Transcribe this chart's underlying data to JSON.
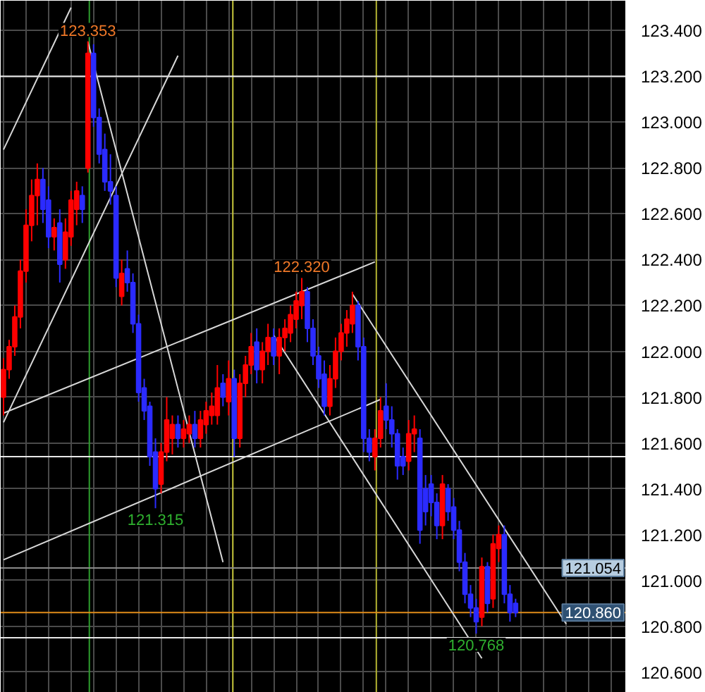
{
  "chart_data": {
    "type": "candlestick",
    "categories": [
      null,
      null,
      null,
      null,
      null,
      null,
      null,
      null,
      null,
      null,
      null,
      null,
      null,
      null,
      null,
      null,
      null,
      null,
      null,
      null,
      null,
      null,
      null,
      null,
      null,
      null,
      null,
      null,
      null,
      null,
      null,
      null,
      null,
      null,
      null,
      null,
      null,
      null,
      null,
      null,
      null,
      null,
      null,
      null,
      null,
      null,
      null,
      null,
      null,
      null,
      null,
      null,
      null,
      null,
      null,
      null,
      null,
      null,
      null,
      null,
      null,
      null,
      null,
      null,
      null,
      null,
      null,
      null,
      null,
      null,
      null,
      null,
      null,
      null,
      null,
      null,
      null,
      null,
      null,
      null,
      null,
      null,
      null,
      null,
      null,
      null,
      null,
      null,
      null,
      null,
      null,
      null,
      null,
      null,
      null,
      null,
      null,
      null,
      null,
      null,
      null,
      null,
      null,
      null,
      null,
      null,
      null,
      null,
      null,
      null,
      null
    ],
    "ohlc": [
      [
        121.8,
        121.97,
        121.72,
        121.92
      ],
      [
        121.92,
        122.05,
        121.88,
        122.02
      ],
      [
        122.02,
        122.2,
        121.98,
        122.15
      ],
      [
        122.15,
        122.4,
        122.1,
        122.35
      ],
      [
        122.35,
        122.62,
        122.3,
        122.55
      ],
      [
        122.55,
        122.75,
        122.48,
        122.68
      ],
      [
        122.68,
        122.82,
        122.55,
        122.75
      ],
      [
        122.75,
        122.8,
        122.56,
        122.62
      ],
      [
        122.66,
        122.72,
        122.45,
        122.5
      ],
      [
        122.5,
        122.58,
        122.44,
        122.54
      ],
      [
        122.56,
        122.62,
        122.3,
        122.38
      ],
      [
        122.4,
        122.58,
        122.36,
        122.52
      ],
      [
        122.5,
        122.7,
        122.46,
        122.66
      ],
      [
        122.62,
        122.74,
        122.55,
        122.7
      ],
      [
        122.68,
        122.72,
        122.56,
        122.62
      ],
      [
        122.8,
        123.353,
        122.78,
        123.3
      ],
      [
        123.3,
        123.34,
        122.98,
        123.02
      ],
      [
        123.02,
        123.06,
        122.82,
        122.86
      ],
      [
        122.88,
        122.95,
        122.7,
        122.74
      ],
      [
        122.74,
        122.86,
        122.64,
        122.7
      ],
      [
        122.68,
        122.72,
        122.28,
        122.32
      ],
      [
        122.24,
        122.4,
        122.2,
        122.34
      ],
      [
        122.36,
        122.44,
        122.26,
        122.3
      ],
      [
        122.3,
        122.34,
        122.08,
        122.12
      ],
      [
        122.12,
        122.16,
        121.78,
        121.82
      ],
      [
        121.84,
        121.88,
        121.7,
        121.74
      ],
      [
        121.76,
        121.78,
        121.5,
        121.54
      ],
      [
        121.56,
        121.62,
        121.315,
        121.4
      ],
      [
        121.42,
        121.6,
        121.38,
        121.56
      ],
      [
        121.56,
        121.8,
        121.52,
        121.7
      ],
      [
        121.62,
        121.72,
        121.55,
        121.68
      ],
      [
        121.68,
        121.72,
        121.58,
        121.62
      ],
      [
        121.62,
        121.7,
        121.58,
        121.66
      ],
      [
        121.64,
        121.72,
        121.6,
        121.68
      ],
      [
        121.68,
        121.74,
        121.58,
        121.62
      ],
      [
        121.62,
        121.74,
        121.58,
        121.7
      ],
      [
        121.68,
        121.78,
        121.64,
        121.74
      ],
      [
        121.72,
        121.82,
        121.68,
        121.76
      ],
      [
        121.72,
        121.94,
        121.68,
        121.84
      ],
      [
        121.86,
        121.9,
        121.76,
        121.8
      ],
      [
        121.78,
        121.96,
        121.72,
        121.88
      ],
      [
        121.88,
        121.92,
        121.54,
        121.62
      ],
      [
        121.62,
        121.9,
        121.58,
        121.86
      ],
      [
        121.86,
        121.98,
        121.8,
        121.94
      ],
      [
        121.94,
        122.08,
        121.9,
        122.02
      ],
      [
        122.04,
        122.1,
        121.86,
        121.92
      ],
      [
        121.92,
        122.04,
        121.86,
        122.0
      ],
      [
        122.0,
        122.12,
        121.94,
        122.06
      ],
      [
        122.06,
        122.1,
        121.94,
        121.98
      ],
      [
        121.98,
        122.1,
        121.9,
        122.06
      ],
      [
        122.06,
        122.14,
        122.0,
        122.1
      ],
      [
        122.08,
        122.2,
        122.04,
        122.16
      ],
      [
        122.14,
        122.26,
        122.1,
        122.22
      ],
      [
        122.2,
        122.32,
        122.14,
        122.26
      ],
      [
        122.26,
        122.28,
        122.04,
        122.1
      ],
      [
        122.1,
        122.14,
        121.94,
        121.98
      ],
      [
        121.98,
        122.02,
        121.84,
        121.88
      ],
      [
        121.9,
        121.96,
        121.72,
        121.76
      ],
      [
        121.76,
        121.94,
        121.72,
        121.88
      ],
      [
        121.88,
        122.06,
        121.84,
        122.0
      ],
      [
        122.0,
        122.12,
        121.96,
        122.08
      ],
      [
        122.08,
        122.18,
        122.02,
        122.14
      ],
      [
        122.12,
        122.26,
        122.08,
        122.2
      ],
      [
        122.2,
        122.22,
        121.96,
        122.02
      ],
      [
        122.02,
        122.06,
        121.56,
        121.62
      ],
      [
        121.62,
        121.66,
        121.52,
        121.56
      ],
      [
        121.54,
        121.66,
        121.48,
        121.62
      ],
      [
        121.62,
        121.8,
        121.58,
        121.74
      ],
      [
        121.76,
        121.86,
        121.66,
        121.7
      ],
      [
        121.7,
        121.76,
        121.58,
        121.64
      ],
      [
        121.64,
        121.66,
        121.44,
        121.5
      ],
      [
        121.54,
        121.58,
        121.46,
        121.5
      ],
      [
        121.52,
        121.7,
        121.48,
        121.64
      ],
      [
        121.64,
        121.72,
        121.56,
        121.66
      ],
      [
        121.62,
        121.66,
        121.16,
        121.22
      ],
      [
        121.4,
        121.46,
        121.24,
        121.3
      ],
      [
        121.42,
        121.46,
        121.28,
        121.34
      ],
      [
        121.34,
        121.38,
        121.18,
        121.24
      ],
      [
        121.24,
        121.46,
        121.18,
        121.42
      ],
      [
        121.4,
        121.42,
        121.26,
        121.3
      ],
      [
        121.32,
        121.36,
        121.18,
        121.22
      ],
      [
        121.22,
        121.26,
        121.04,
        121.08
      ],
      [
        121.08,
        121.12,
        120.9,
        120.94
      ],
      [
        120.94,
        120.98,
        120.84,
        120.88
      ],
      [
        120.88,
        120.92,
        120.768,
        120.82
      ],
      [
        120.84,
        121.1,
        120.8,
        121.06
      ],
      [
        121.06,
        121.08,
        120.86,
        120.9
      ],
      [
        120.92,
        121.2,
        120.88,
        121.16
      ],
      [
        121.14,
        121.24,
        121.08,
        121.2
      ],
      [
        121.2,
        121.24,
        120.9,
        120.94
      ],
      [
        120.94,
        120.98,
        120.82,
        120.86
      ],
      [
        120.9,
        120.92,
        120.84,
        120.86
      ],
      null,
      null,
      null,
      null,
      null,
      null,
      null,
      null,
      null,
      null,
      null,
      null,
      null,
      null,
      null,
      null,
      null,
      null,
      null
    ],
    "colors": [
      "#ff0000",
      "#ff0000",
      "#ff0000",
      "#ff0000",
      "#ff0000",
      "#ff0000",
      "#ff0000",
      "#2b2bff",
      "#2b2bff",
      "#ff0000",
      "#2b2bff",
      "#ff0000",
      "#ff0000",
      "#ff0000",
      "#2b2bff",
      "#ff0000",
      "#2b2bff",
      "#2b2bff",
      "#2b2bff",
      "#2b2bff",
      "#2b2bff",
      "#ff0000",
      "#2b2bff",
      "#2b2bff",
      "#2b2bff",
      "#2b2bff",
      "#2b2bff",
      "#2b2bff",
      "#ff0000",
      "#ff0000",
      "#ff0000",
      "#2b2bff",
      "#ff0000",
      "#ff0000",
      "#2b2bff",
      "#ff0000",
      "#ff0000",
      "#ff0000",
      "#ff0000",
      "#2b2bff",
      "#ff0000",
      "#2b2bff",
      "#ff0000",
      "#ff0000",
      "#ff0000",
      "#2b2bff",
      "#ff0000",
      "#ff0000",
      "#2b2bff",
      "#ff0000",
      "#ff0000",
      "#ff0000",
      "#ff0000",
      "#ff0000",
      "#2b2bff",
      "#2b2bff",
      "#2b2bff",
      "#2b2bff",
      "#ff0000",
      "#ff0000",
      "#ff0000",
      "#ff0000",
      "#ff0000",
      "#2b2bff",
      "#2b2bff",
      "#2b2bff",
      "#ff0000",
      "#ff0000",
      "#2b2bff",
      "#2b2bff",
      "#2b2bff",
      "#2b2bff",
      "#ff0000",
      "#ff0000",
      "#2b2bff",
      "#2b2bff",
      "#2b2bff",
      "#2b2bff",
      "#ff0000",
      "#2b2bff",
      "#2b2bff",
      "#2b2bff",
      "#2b2bff",
      "#2b2bff",
      "#2b2bff",
      "#ff0000",
      "#2b2bff",
      "#ff0000",
      "#ff0000",
      "#2b2bff",
      "#2b2bff",
      "#2b2bff",
      null,
      null,
      null,
      null,
      null,
      null,
      null,
      null,
      null,
      null,
      null,
      null,
      null,
      null,
      null,
      null,
      null,
      null,
      null
    ],
    "series": [
      {
        "type": "line",
        "color": "#d8d8d8",
        "values": [
          122.88,
          null,
          null,
          null,
          null,
          null,
          null,
          null,
          null,
          null,
          null,
          null,
          123.5,
          null,
          null,
          null,
          null,
          null,
          null,
          null,
          null,
          null,
          null,
          null,
          null,
          null,
          null,
          null,
          null,
          null,
          null,
          null,
          null,
          null,
          null,
          null,
          null,
          null,
          null,
          null,
          null,
          null,
          null,
          null,
          null,
          null,
          null,
          null,
          null,
          null,
          null,
          null,
          null,
          null,
          null,
          null,
          null,
          null,
          null,
          null,
          null,
          null,
          null,
          null,
          null,
          null,
          null,
          null,
          null,
          null,
          null,
          null,
          null,
          null,
          null,
          null,
          null,
          null,
          null,
          null,
          null,
          null,
          null,
          null,
          null,
          null,
          null,
          null,
          null,
          null,
          null,
          null,
          null,
          null,
          null,
          null,
          null,
          null,
          null,
          null,
          null,
          null,
          null,
          null,
          null,
          null,
          null,
          null,
          null,
          null,
          null
        ]
      },
      {
        "type": "line",
        "color": "#d8d8d8",
        "values": [
          121.69,
          null,
          null,
          null,
          null,
          null,
          null,
          null,
          null,
          null,
          null,
          null,
          null,
          null,
          null,
          null,
          null,
          null,
          null,
          null,
          null,
          null,
          null,
          null,
          null,
          null,
          null,
          null,
          null,
          null,
          null,
          123.29,
          null,
          null,
          null,
          null,
          null,
          null,
          null,
          null,
          null,
          null,
          null,
          null,
          null,
          null,
          null,
          null,
          null,
          null,
          null,
          null,
          null,
          null,
          null,
          null,
          null,
          null,
          null,
          null,
          null,
          null,
          null,
          null,
          null,
          null,
          null,
          null,
          null,
          null,
          null,
          null,
          null,
          null,
          null,
          null,
          null,
          null,
          null,
          null,
          null,
          null,
          null,
          null,
          null,
          null,
          null,
          null,
          null,
          null,
          null,
          null,
          null,
          null,
          null,
          null,
          null,
          null,
          null,
          null,
          null,
          null,
          null,
          null,
          null,
          null,
          null,
          null,
          null,
          null,
          null
        ]
      },
      {
        "type": "line",
        "color": "#d8d8d8",
        "values": [
          null,
          null,
          null,
          null,
          null,
          null,
          null,
          null,
          null,
          null,
          null,
          null,
          null,
          null,
          null,
          123.35,
          null,
          null,
          null,
          null,
          null,
          null,
          null,
          null,
          null,
          null,
          null,
          null,
          null,
          null,
          null,
          null,
          null,
          null,
          null,
          null,
          null,
          null,
          null,
          121.08,
          null,
          null,
          null,
          null,
          null,
          null,
          null,
          null,
          null,
          null,
          null,
          null,
          null,
          null,
          null,
          null,
          null,
          null,
          null,
          null,
          null,
          null,
          null,
          null,
          null,
          null,
          null,
          null,
          null,
          null,
          null,
          null,
          null,
          null,
          null,
          null,
          null,
          null,
          null,
          null,
          null,
          null,
          null,
          null,
          null,
          null,
          null,
          null,
          null,
          null,
          null,
          null,
          null,
          null,
          null,
          null,
          null,
          null,
          null,
          null,
          null,
          null,
          null,
          null,
          null,
          null,
          null,
          null,
          null,
          null,
          null
        ]
      },
      {
        "type": "line",
        "color": "#d8d8d8",
        "values": [
          121.09,
          null,
          null,
          null,
          null,
          null,
          null,
          null,
          null,
          null,
          null,
          null,
          null,
          null,
          null,
          null,
          null,
          null,
          null,
          null,
          null,
          null,
          null,
          null,
          null,
          null,
          null,
          null,
          null,
          null,
          null,
          null,
          null,
          null,
          null,
          null,
          null,
          null,
          null,
          null,
          null,
          null,
          null,
          null,
          null,
          null,
          null,
          null,
          null,
          null,
          null,
          null,
          null,
          null,
          null,
          null,
          null,
          null,
          null,
          null,
          null,
          null,
          null,
          null,
          null,
          null,
          null,
          121.79,
          null,
          null,
          null,
          null,
          null,
          null,
          null,
          null,
          null,
          null,
          null,
          null,
          null,
          null,
          null,
          null,
          null,
          null,
          null,
          null,
          null,
          null,
          null,
          null,
          null,
          null,
          null,
          null,
          null,
          null,
          null,
          null,
          null,
          null,
          null,
          null,
          null,
          null,
          null,
          null,
          null,
          null,
          null
        ]
      },
      {
        "type": "line",
        "color": "#d8d8d8",
        "values": [
          121.73,
          null,
          null,
          null,
          null,
          null,
          null,
          null,
          null,
          null,
          null,
          null,
          null,
          null,
          null,
          null,
          null,
          null,
          null,
          null,
          null,
          null,
          null,
          null,
          null,
          null,
          null,
          null,
          null,
          null,
          null,
          null,
          null,
          null,
          null,
          null,
          null,
          null,
          null,
          null,
          null,
          null,
          null,
          null,
          null,
          null,
          null,
          null,
          null,
          null,
          null,
          null,
          null,
          null,
          null,
          null,
          null,
          null,
          null,
          null,
          null,
          null,
          null,
          null,
          null,
          null,
          122.39,
          null,
          null,
          null,
          null,
          null,
          null,
          null,
          null,
          null,
          null,
          null,
          null,
          null,
          null,
          null,
          null,
          null,
          null,
          null,
          null,
          null,
          null,
          null,
          null,
          null,
          null,
          null,
          null,
          null,
          null,
          null,
          null,
          null,
          null,
          null,
          null,
          null,
          null,
          null,
          null,
          null,
          null,
          null,
          null
        ]
      },
      {
        "type": "line",
        "color": "#d8d8d8",
        "values": [
          null,
          null,
          null,
          null,
          null,
          null,
          null,
          null,
          null,
          null,
          null,
          null,
          null,
          null,
          null,
          null,
          null,
          null,
          null,
          null,
          null,
          null,
          null,
          null,
          null,
          null,
          null,
          null,
          null,
          null,
          null,
          null,
          null,
          null,
          null,
          null,
          null,
          null,
          null,
          null,
          null,
          null,
          null,
          null,
          null,
          null,
          null,
          null,
          null,
          null,
          null,
          null,
          null,
          null,
          null,
          null,
          null,
          null,
          null,
          null,
          null,
          null,
          122.25,
          null,
          null,
          null,
          null,
          null,
          null,
          null,
          null,
          null,
          null,
          null,
          null,
          null,
          null,
          null,
          null,
          null,
          null,
          null,
          null,
          null,
          null,
          null,
          null,
          null,
          null,
          null,
          null,
          null,
          null,
          null,
          null,
          null,
          null,
          null,
          null,
          null,
          120.81,
          null,
          null,
          null,
          null,
          null,
          null,
          null,
          null,
          null,
          null
        ]
      },
      {
        "type": "line",
        "color": "#d8d8d8",
        "values": [
          null,
          null,
          null,
          null,
          null,
          null,
          null,
          null,
          null,
          null,
          null,
          null,
          null,
          null,
          null,
          null,
          null,
          null,
          null,
          null,
          null,
          null,
          null,
          null,
          null,
          null,
          null,
          null,
          null,
          null,
          null,
          null,
          null,
          null,
          null,
          null,
          null,
          null,
          null,
          null,
          null,
          null,
          null,
          null,
          null,
          null,
          null,
          null,
          122.07,
          null,
          null,
          null,
          null,
          null,
          null,
          null,
          null,
          null,
          null,
          null,
          null,
          null,
          null,
          null,
          null,
          null,
          null,
          null,
          null,
          null,
          null,
          null,
          null,
          null,
          null,
          null,
          null,
          null,
          null,
          null,
          null,
          null,
          null,
          null,
          null,
          120.66,
          null,
          null,
          null,
          null,
          null,
          null,
          null,
          null,
          null,
          null,
          null,
          null,
          null,
          null,
          null,
          null,
          null,
          null,
          null,
          null,
          null,
          null,
          null,
          null,
          null
        ]
      }
    ],
    "ylim": [
      120.51,
      123.53
    ],
    "yticks": [
      {
        "value": 120.6,
        "label": "120.600"
      },
      {
        "value": 120.8,
        "label": "120.800"
      },
      {
        "value": 121.0,
        "label": "121.000"
      },
      {
        "value": 121.2,
        "label": "121.200"
      },
      {
        "value": 121.4,
        "label": "121.400"
      },
      {
        "value": 121.6,
        "label": "121.600"
      },
      {
        "value": 121.8,
        "label": "121.800"
      },
      {
        "value": 122.0,
        "label": "122.000"
      },
      {
        "value": 122.2,
        "label": "122.200"
      },
      {
        "value": 122.4,
        "label": "122.400"
      },
      {
        "value": 122.6,
        "label": "122.600"
      },
      {
        "value": 122.8,
        "label": "122.800"
      },
      {
        "value": 123.0,
        "label": "123.000"
      },
      {
        "value": 123.2,
        "label": "123.200"
      },
      {
        "value": 123.4,
        "label": "123.400"
      }
    ],
    "ref_lines": [
      {
        "axis": "y",
        "value": 123.2,
        "color": "#e8e8e8"
      },
      {
        "axis": "y",
        "value": 121.54,
        "color": "#e8e8e8"
      },
      {
        "axis": "y",
        "value": 121.054,
        "label": "121.054",
        "color": "#8a8a8a"
      },
      {
        "axis": "y",
        "value": 120.86,
        "label": "120.860",
        "color": "#e08c1a"
      },
      {
        "axis": "y",
        "value": 120.75,
        "color": "#e8e8e8"
      }
    ],
    "annotations": [
      {
        "text": "123.353",
        "y": 123.353
      },
      {
        "text": "122.320",
        "y": 122.32
      },
      {
        "text": "121.315",
        "y": 121.315
      },
      {
        "text": "120.768",
        "y": 120.768
      }
    ],
    "grid": true,
    "tick_labels": "y"
  }
}
